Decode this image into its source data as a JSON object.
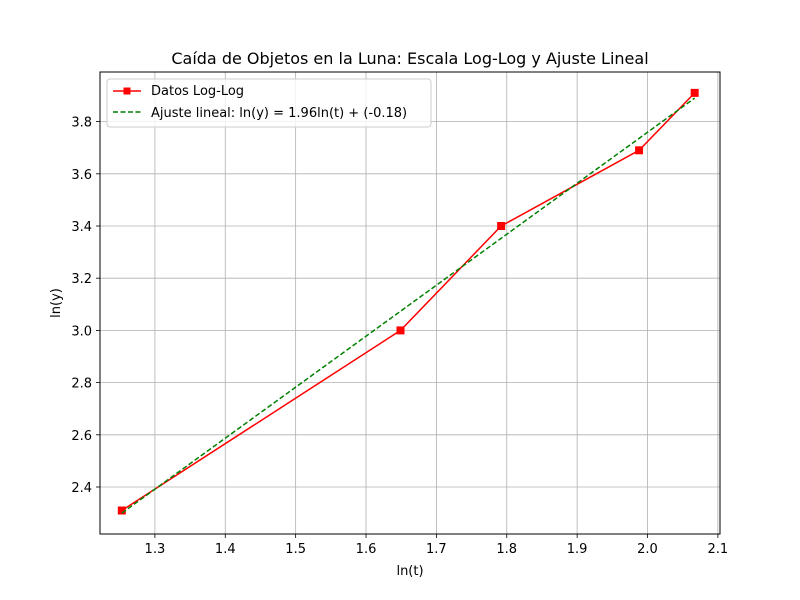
{
  "chart_data": {
    "type": "line",
    "title": "Caída de Objetos en la Luna: Escala Log-Log y Ajuste Lineal",
    "xlabel": "ln(t)",
    "ylabel": "ln(y)",
    "xlim": [
      1.222,
      2.103
    ],
    "ylim": [
      2.22,
      3.99
    ],
    "xticks": [
      1.3,
      1.4,
      1.5,
      1.6,
      1.7,
      1.8,
      1.9,
      2.0,
      2.1
    ],
    "xtick_labels": [
      "1.3",
      "1.4",
      "1.5",
      "1.6",
      "1.7",
      "1.8",
      "1.9",
      "2.0",
      "2.1"
    ],
    "yticks": [
      2.4,
      2.6,
      2.8,
      3.0,
      3.2,
      3.4,
      3.6,
      3.8
    ],
    "ytick_labels": [
      "2.4",
      "2.6",
      "2.8",
      "3.0",
      "3.2",
      "3.4",
      "3.6",
      "3.8"
    ],
    "grid": true,
    "legend_position": "top-left",
    "series": [
      {
        "name": "Datos Log-Log",
        "color": "#ff0000",
        "style": "solid",
        "marker": "square",
        "x": [
          1.253,
          1.649,
          1.792,
          1.988,
          2.067
        ],
        "y": [
          2.31,
          3.0,
          3.4,
          3.69,
          3.91
        ]
      },
      {
        "name": "Ajuste lineal: ln(y) = 1.96ln(t) + (-0.18)",
        "color": "#008000",
        "style": "dashed",
        "marker": "none",
        "x": [
          1.253,
          2.067
        ],
        "y": [
          2.3,
          3.89
        ]
      }
    ]
  }
}
